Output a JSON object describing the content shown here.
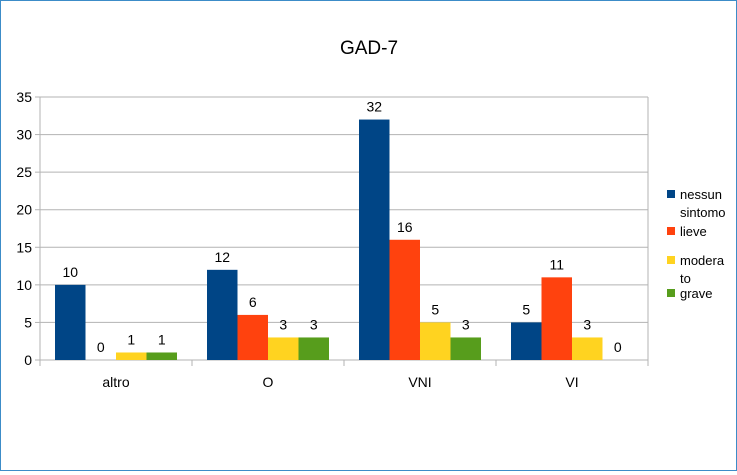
{
  "chart_data": {
    "type": "bar",
    "title": "GAD-7",
    "categories": [
      "altro",
      "O",
      "VNI",
      "VI"
    ],
    "series": [
      {
        "name": "nessun sintomo",
        "legend_lines": [
          "nessun",
          "sintomo"
        ],
        "color": "#004586",
        "values": [
          10,
          12,
          32,
          5
        ]
      },
      {
        "name": "lieve",
        "legend_lines": [
          "lieve"
        ],
        "color": "#ff420e",
        "values": [
          0,
          6,
          16,
          11
        ]
      },
      {
        "name": "moderato",
        "legend_lines": [
          "modera",
          "to"
        ],
        "color": "#ffd320",
        "values": [
          1,
          3,
          5,
          3
        ]
      },
      {
        "name": "grave",
        "legend_lines": [
          "grave"
        ],
        "color": "#579d1c",
        "values": [
          1,
          3,
          3,
          0
        ]
      }
    ],
    "ylim": [
      0,
      35
    ],
    "yticks": [
      0,
      5,
      10,
      15,
      20,
      25,
      30,
      35
    ],
    "grid": true,
    "legend_position": "right",
    "data_labels": true
  }
}
